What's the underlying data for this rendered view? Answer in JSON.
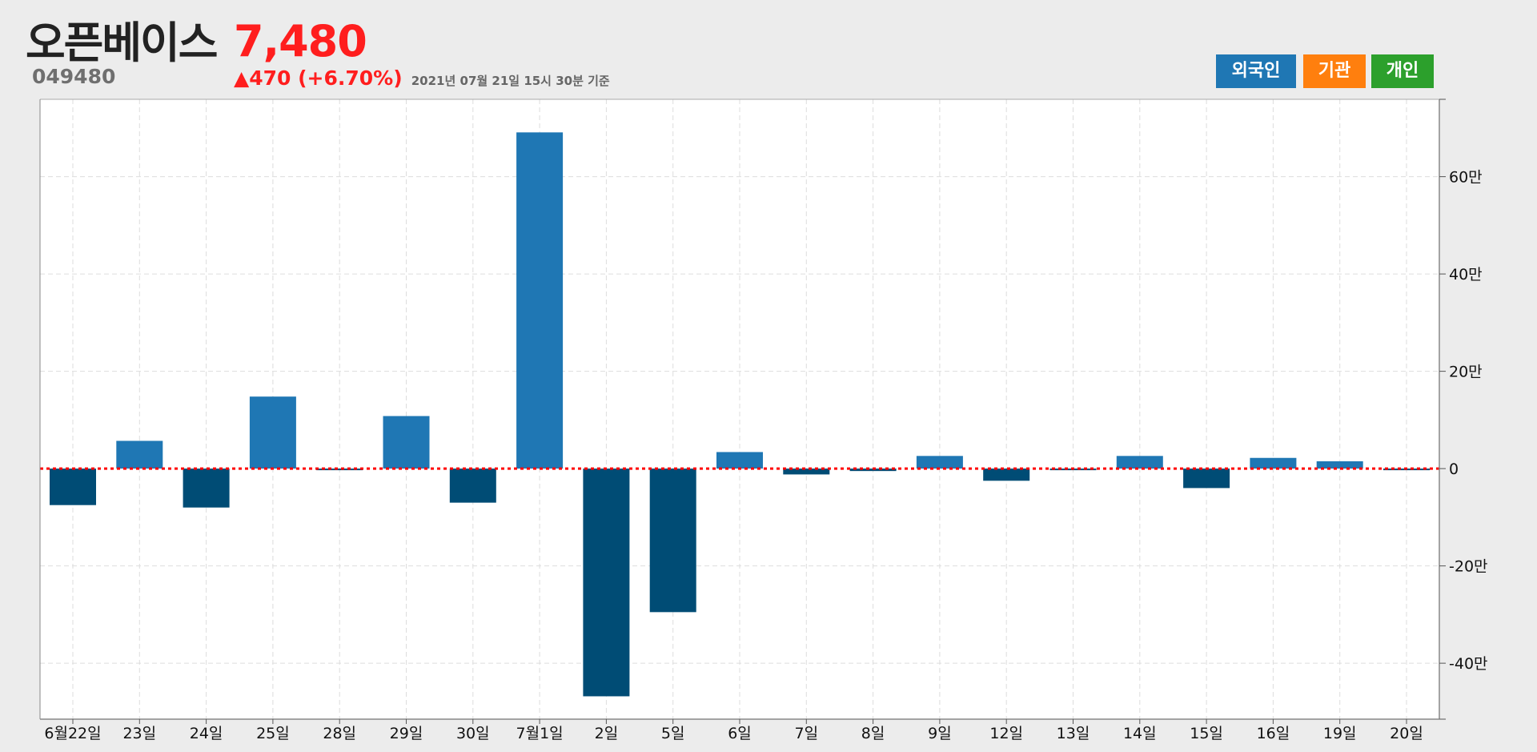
{
  "header": {
    "name": "오픈베이스",
    "code": "049480",
    "price": "7,480",
    "change": "▲470 (+6.70%)",
    "as_of": "2021년 07월 21일 15시 30분 기준"
  },
  "legend": {
    "foreign": {
      "label": "외국인",
      "color": "#1f77b4"
    },
    "institution": {
      "label": "기관",
      "color": "#ff7f0e"
    },
    "individual": {
      "label": "개인",
      "color": "#2ca02c"
    }
  },
  "colors": {
    "positive_bar": "#1f77b4",
    "negative_bar": "#004c75",
    "zero_line": "#ff0000",
    "plot_bg": "#ffffff",
    "grid": "#dddddd"
  },
  "chart_data": {
    "type": "bar",
    "categories": [
      "6월22일",
      "23일",
      "24일",
      "25일",
      "28일",
      "29일",
      "30일",
      "7월1일",
      "2일",
      "5일",
      "6일",
      "7일",
      "8일",
      "9일",
      "12일",
      "13일",
      "14일",
      "15일",
      "16일",
      "19일",
      "20일"
    ],
    "series": [
      {
        "values": [
          -75000,
          57000,
          -80000,
          148000,
          -3000,
          108000,
          -70000,
          691000,
          -468000,
          -295000,
          34000,
          -12000,
          -5000,
          26000,
          -25000,
          -3000,
          26000,
          -40000,
          22000,
          15000,
          -3000
        ]
      }
    ],
    "y_ticks": [
      -400000,
      -200000,
      0,
      200000,
      400000,
      600000
    ],
    "y_tick_labels": [
      "-40만",
      "-20만",
      "0",
      "20만",
      "40만",
      "60만"
    ],
    "ylim": [
      -515000,
      759000
    ],
    "grid": true,
    "y_axis_position": "right",
    "zero_line_style": "dotted"
  }
}
